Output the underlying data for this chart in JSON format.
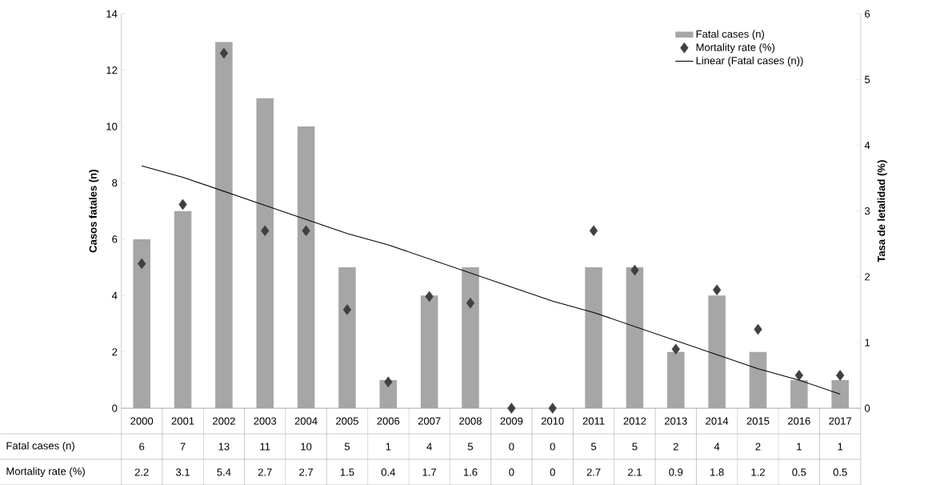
{
  "chart_data": {
    "type": "bar",
    "ylabel": "Casos fatales (n)",
    "y2label": "Tasa de letalidad (%)",
    "categories": [
      "2000",
      "2001",
      "2002",
      "2003",
      "2004",
      "2005",
      "2006",
      "2007",
      "2008",
      "2009",
      "2010",
      "2011",
      "2012",
      "2013",
      "2014",
      "2015",
      "2016",
      "2017"
    ],
    "series": [
      {
        "name": "Fatal cases (n)",
        "color": "#a6a6a6",
        "values": [
          6,
          7,
          13,
          11,
          10,
          5,
          1,
          4,
          5,
          0,
          0,
          5,
          5,
          2,
          4,
          2,
          1,
          1
        ],
        "value_labels": [
          "6",
          "7",
          "13",
          "11",
          "10",
          "5",
          "1",
          "4",
          "5",
          "0",
          "0",
          "5",
          "5",
          "2",
          "4",
          "2",
          "1",
          "1"
        ]
      },
      {
        "name": "Mortality rate (%)",
        "type": "scatter",
        "axis": "y2",
        "marker": "diamond",
        "color": "#404040",
        "values": [
          2.2,
          3.1,
          5.4,
          2.7,
          2.7,
          1.5,
          0.4,
          1.7,
          1.6,
          0,
          0,
          2.7,
          2.1,
          0.9,
          1.8,
          1.2,
          0.5,
          0.5
        ],
        "value_labels": [
          "2.2",
          "3.1",
          "5.4",
          "2.7",
          "2.7",
          "1.5",
          "0.4",
          "1.7",
          "1.6",
          "0",
          "0",
          "2.7",
          "2.1",
          "0.9",
          "1.8",
          "1.2",
          "0.5",
          "0.5"
        ]
      },
      {
        "name": "Linear (Fatal cases (n))",
        "type": "line",
        "color": "#000000",
        "values": [
          8.6,
          8.2,
          7.7,
          7.2,
          6.7,
          6.2,
          5.8,
          5.3,
          4.8,
          4.3,
          3.8,
          3.4,
          2.9,
          2.4,
          1.9,
          1.4,
          1.0,
          0.5
        ]
      }
    ],
    "ylim": [
      0,
      14
    ],
    "yticks": [
      0,
      2,
      4,
      6,
      8,
      10,
      12,
      14
    ],
    "y2lim": [
      0,
      6
    ],
    "y2ticks": [
      0,
      1,
      2,
      3,
      4,
      5,
      6
    ],
    "legend": "top right",
    "grid": false
  }
}
